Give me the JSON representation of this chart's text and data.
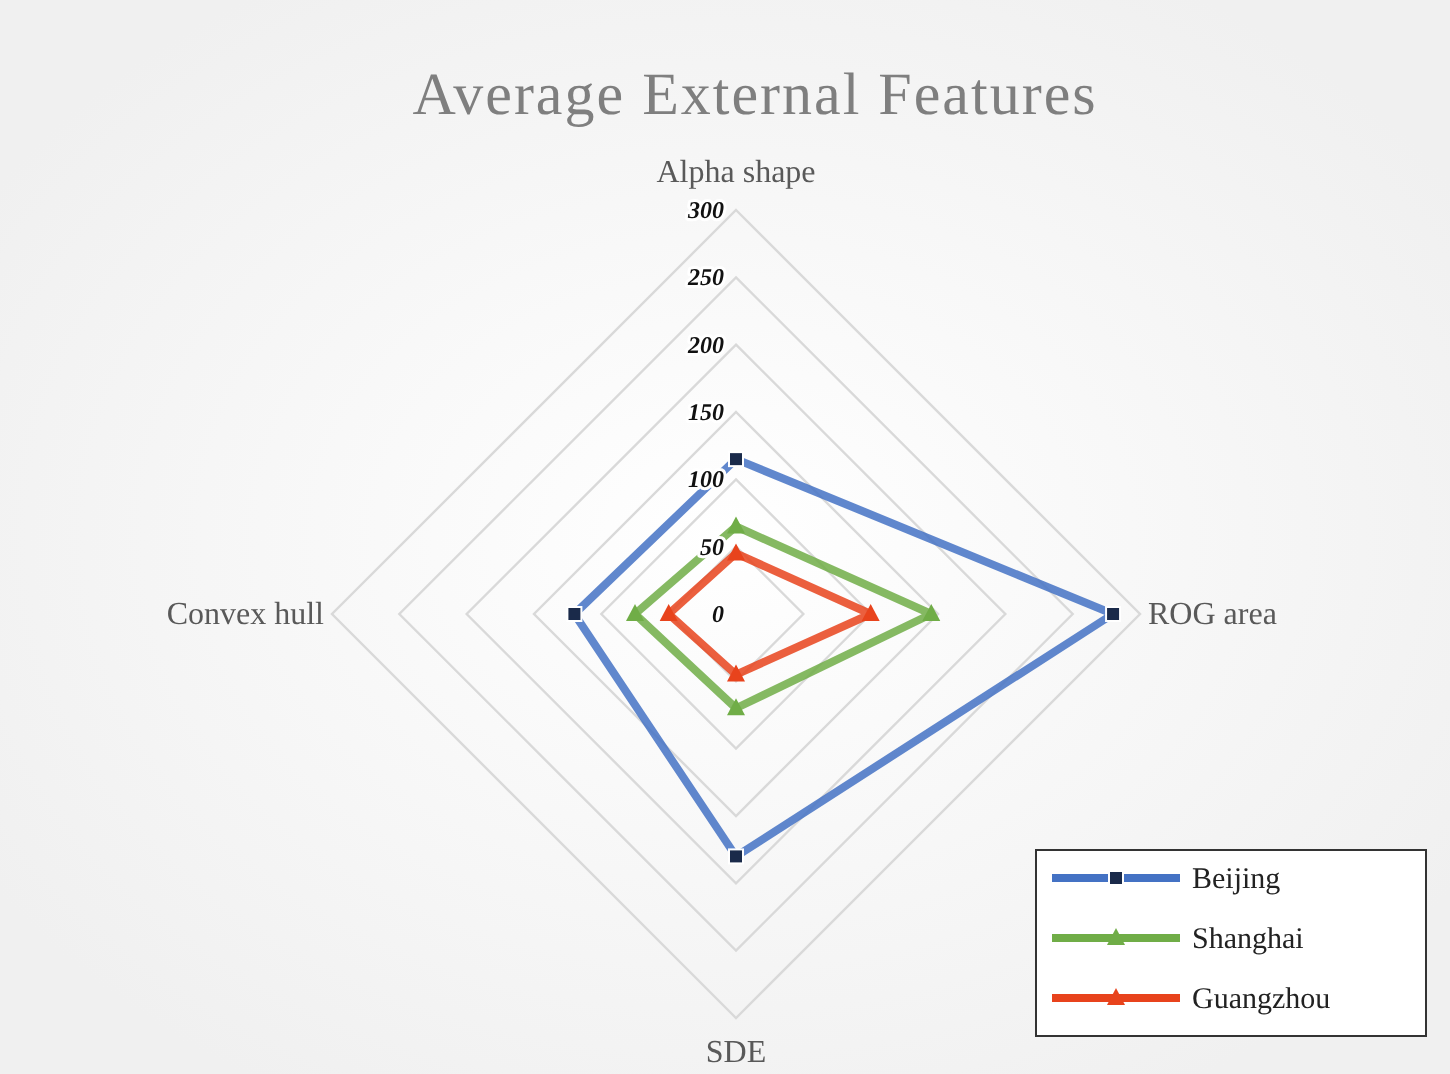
{
  "chart_data": {
    "type": "radar",
    "title": "Average External Features",
    "categories": [
      "Alpha shape",
      "ROG area",
      "SDE",
      "Convex hull"
    ],
    "ylim": [
      0,
      300
    ],
    "yticks": [
      0,
      50,
      100,
      150,
      200,
      250,
      300
    ],
    "grid": true,
    "legend": "bottom right",
    "series": [
      {
        "name": "Beijing",
        "color": "#4472c4",
        "marker": "square",
        "values": [
          115,
          280,
          180,
          120
        ]
      },
      {
        "name": "Shanghai",
        "color": "#70ad47",
        "marker": "triangle",
        "values": [
          65,
          145,
          70,
          75
        ]
      },
      {
        "name": "Guangzhou",
        "color": "#e8431c",
        "marker": "triangle",
        "values": [
          45,
          100,
          45,
          50
        ]
      }
    ]
  }
}
